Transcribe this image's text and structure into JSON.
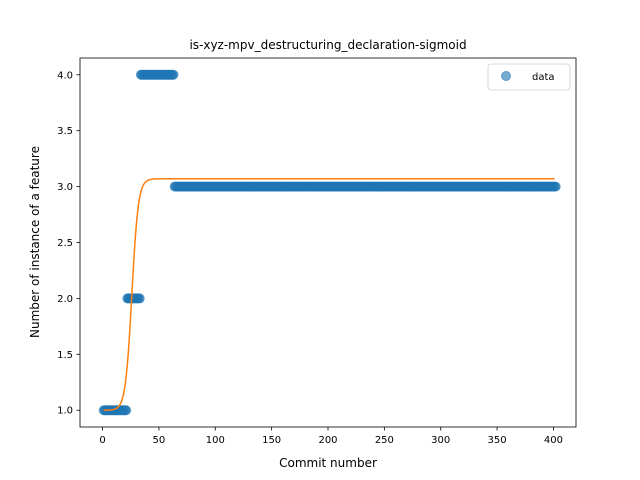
{
  "chart_data": {
    "type": "scatter",
    "title": "is-xyz-mpv_destructuring_declaration-sigmoid",
    "xlabel": "Commit number",
    "ylabel": "Number of instance of a feature",
    "xlim": [
      -20,
      420
    ],
    "ylim": [
      0.85,
      4.15
    ],
    "x_ticks": [
      0,
      50,
      100,
      150,
      200,
      250,
      300,
      350,
      400
    ],
    "x_tick_labels": [
      "0",
      "50",
      "100",
      "150",
      "200",
      "250",
      "300",
      "350",
      "400"
    ],
    "y_ticks": [
      1.0,
      1.5,
      2.0,
      2.5,
      3.0,
      3.5,
      4.0
    ],
    "y_tick_labels": [
      "1.0",
      "1.5",
      "2.0",
      "2.5",
      "3.0",
      "3.5",
      "4.0"
    ],
    "grid": false,
    "legend": {
      "position": "top-right",
      "entries": [
        "data"
      ]
    },
    "series": [
      {
        "name": "data",
        "kind": "scatter",
        "color": "#1f77b4",
        "segments": [
          {
            "x_start": 1,
            "x_end": 21,
            "y": 1.0
          },
          {
            "x_start": 22,
            "x_end": 33,
            "y": 2.0
          },
          {
            "x_start": 34,
            "x_end": 63,
            "y": 4.0
          },
          {
            "x_start": 64,
            "x_end": 402,
            "y": 3.0
          }
        ]
      },
      {
        "kind": "line",
        "color": "#ff7f0e",
        "model": "sigmoid",
        "params": {
          "lower": 1.0,
          "upper": 3.07,
          "midpoint": 26,
          "rate": 0.35
        },
        "x_range": [
          1,
          401
        ]
      }
    ]
  }
}
